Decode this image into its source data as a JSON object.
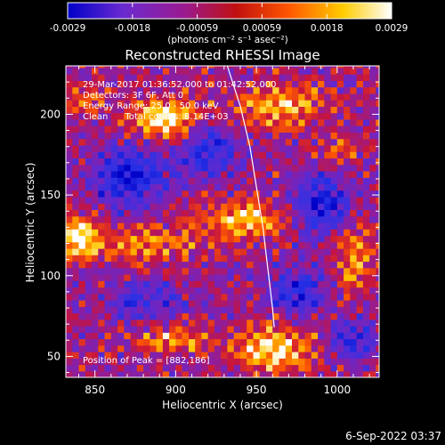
{
  "chart_data": {
    "type": "heatmap",
    "title": "Reconstructed RHESSI Image",
    "xlabel": "Heliocentric X (arcsec)",
    "ylabel": "Heliocentric Y (arcsec)",
    "xlim": [
      832,
      1026
    ],
    "ylim": [
      37,
      230
    ],
    "xticks": [
      850,
      900,
      950,
      1000
    ],
    "yticks": [
      50,
      100,
      150,
      200
    ],
    "colorbar": {
      "ticks": [
        "-0.0029",
        "-0.0018",
        "-0.00059",
        "0.00059",
        "0.0018",
        "0.0029"
      ],
      "unit_label": "(photons cm⁻² s⁻¹ asec⁻²)",
      "range": [
        -0.0029,
        0.0029
      ],
      "colors": [
        "#0000c8",
        "#6a2ad0",
        "#9a1a90",
        "#c01010",
        "#ff5500",
        "#ffcc00",
        "#ffffff"
      ]
    },
    "annotations": [
      "29-Mar-2017 01:36:52.000 to 01:42:52.000",
      "Detectors: 3F 6F, Att 0",
      "Energy Range: 25.0 - 50.0 keV",
      "Clean      Total counts: 8.14E+03"
    ],
    "peak_label": "Position of Peak = [882,186]",
    "peak": [
      882,
      186
    ],
    "limb_curve": [
      [
        932,
        230
      ],
      [
        940,
        205
      ],
      [
        946,
        180
      ],
      [
        950,
        155
      ],
      [
        954,
        130
      ],
      [
        957,
        105
      ],
      [
        960,
        80
      ],
      [
        961,
        68
      ]
    ],
    "hot_regions": [
      {
        "x": 895,
        "y": 198,
        "sx": 20,
        "sy": 12,
        "amp": 1.0
      },
      {
        "x": 965,
        "y": 205,
        "sx": 26,
        "sy": 12,
        "amp": 0.75
      },
      {
        "x": 840,
        "y": 125,
        "sx": 14,
        "sy": 14,
        "amp": 0.85
      },
      {
        "x": 880,
        "y": 120,
        "sx": 30,
        "sy": 10,
        "amp": 0.6
      },
      {
        "x": 940,
        "y": 135,
        "sx": 28,
        "sy": 10,
        "amp": 0.8
      },
      {
        "x": 960,
        "y": 55,
        "sx": 22,
        "sy": 14,
        "amp": 0.95
      },
      {
        "x": 900,
        "y": 60,
        "sx": 20,
        "sy": 8,
        "amp": 0.55
      },
      {
        "x": 1010,
        "y": 110,
        "sx": 12,
        "sy": 22,
        "amp": 0.55
      },
      {
        "x": 1000,
        "y": 175,
        "sx": 14,
        "sy": 10,
        "amp": 0.4
      },
      {
        "x": 845,
        "y": 210,
        "sx": 12,
        "sy": 8,
        "amp": 0.5
      }
    ],
    "cold_regions": [
      {
        "x": 870,
        "y": 160,
        "sx": 22,
        "sy": 18,
        "amp": 0.9
      },
      {
        "x": 920,
        "y": 178,
        "sx": 20,
        "sy": 16,
        "amp": 0.7
      },
      {
        "x": 990,
        "y": 145,
        "sx": 18,
        "sy": 20,
        "amp": 0.8
      },
      {
        "x": 975,
        "y": 90,
        "sx": 18,
        "sy": 14,
        "amp": 0.7
      },
      {
        "x": 880,
        "y": 85,
        "sx": 22,
        "sy": 10,
        "amp": 0.6
      },
      {
        "x": 1010,
        "y": 60,
        "sx": 14,
        "sy": 14,
        "amp": 0.6
      }
    ]
  },
  "footer": {
    "timestamp": "6-Sep-2022 03:37"
  }
}
